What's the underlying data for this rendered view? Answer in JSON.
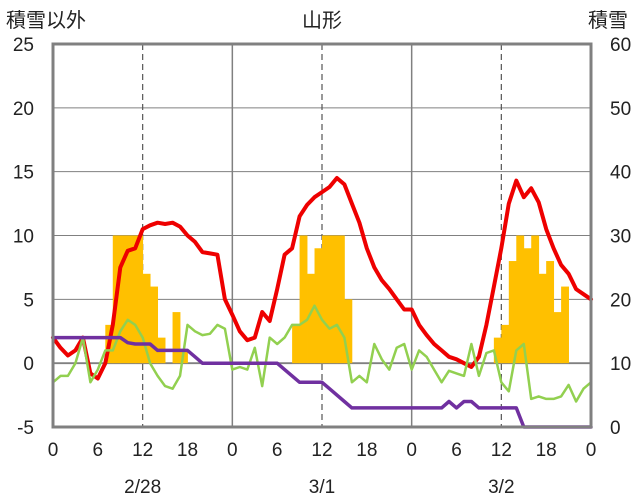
{
  "chart_data": {
    "type": "bar+line",
    "title": "山形",
    "left_axis_label": "積雪以外",
    "right_axis_label": "積雪",
    "left_ylim": [
      -5,
      25
    ],
    "left_yticks": [
      -5,
      0,
      5,
      10,
      15,
      20,
      25
    ],
    "right_ylim": [
      0,
      60
    ],
    "right_yticks": [
      0,
      10,
      20,
      30,
      40,
      50,
      60
    ],
    "xlim": [
      0,
      72
    ],
    "x_ticks": [
      0,
      6,
      12,
      18,
      24,
      30,
      36,
      42,
      48,
      54,
      60,
      66,
      72
    ],
    "x_tick_labels": [
      "0",
      "6",
      "12",
      "18",
      "0",
      "6",
      "12",
      "18",
      "0",
      "6",
      "12",
      "18",
      "0"
    ],
    "day_labels": [
      {
        "x": 12,
        "label": "2/28"
      },
      {
        "x": 36,
        "label": "3/1"
      },
      {
        "x": 60,
        "label": "3/2"
      }
    ],
    "grid": {
      "vertical_solid": [
        24,
        48
      ],
      "vertical_dashed": [
        12,
        36,
        60
      ]
    },
    "colors": {
      "bars": "#FFC000",
      "red": "#EE0000",
      "green": "#92D050",
      "purple": "#7030A0",
      "frame": "#808080"
    },
    "bars": {
      "axis": "left",
      "values": [
        0,
        0,
        0,
        0,
        0,
        0,
        0,
        3,
        10,
        10,
        10,
        10,
        7,
        6,
        2,
        0,
        4,
        1,
        0,
        0,
        0,
        0,
        0,
        0,
        0,
        0,
        0,
        0,
        0,
        0,
        0,
        0,
        3,
        10,
        7,
        9,
        10,
        10,
        10,
        5,
        0,
        0,
        0,
        0,
        0,
        0,
        0,
        0,
        0,
        0,
        0,
        0,
        0,
        0,
        0,
        0,
        0,
        0,
        0,
        2,
        3,
        8,
        10,
        9,
        10,
        7,
        8,
        4,
        6,
        0,
        0,
        0
      ]
    },
    "series": [
      {
        "axis": "left",
        "color": "#EE0000",
        "x": [
          0,
          1,
          2,
          3,
          4,
          5,
          6,
          7,
          8,
          9,
          10,
          11,
          12,
          13,
          14,
          15,
          16,
          17,
          18,
          19,
          20,
          21,
          22,
          23,
          24,
          25,
          26,
          27,
          28,
          29,
          30,
          31,
          32,
          33,
          34,
          35,
          36,
          37,
          38,
          39,
          40,
          41,
          42,
          43,
          44,
          45,
          46,
          47,
          48,
          49,
          50,
          51,
          52,
          53,
          54,
          55,
          56,
          57,
          58,
          59,
          60,
          61,
          62,
          63,
          64,
          65,
          66,
          67,
          68,
          69,
          70,
          71,
          72
        ],
        "values": [
          2,
          1.2,
          0.6,
          1,
          2,
          -0.8,
          -1.2,
          0,
          3,
          7.5,
          8.8,
          9,
          10.5,
          10.8,
          11,
          10.9,
          11,
          10.7,
          10,
          9.5,
          8.7,
          8.6,
          8.5,
          5,
          3.8,
          2.5,
          1.8,
          2,
          4,
          3.3,
          5.8,
          8.5,
          9,
          11.5,
          12.4,
          13,
          13.4,
          13.8,
          14.5,
          14,
          12.5,
          11,
          9,
          7.5,
          6.5,
          5.8,
          5,
          4.2,
          4.2,
          3,
          2.2,
          1.5,
          1,
          0.5,
          0.3,
          0,
          -0.3,
          0.5,
          3,
          6,
          9,
          12.5,
          14.3,
          13,
          13.7,
          12.6,
          10.5,
          9,
          7.7,
          7,
          5.8,
          5.4,
          5
        ]
      },
      {
        "axis": "left",
        "color": "#92D050",
        "x": [
          0,
          1,
          2,
          3,
          4,
          5,
          6,
          7,
          8,
          9,
          10,
          11,
          12,
          13,
          14,
          15,
          16,
          17,
          18,
          19,
          20,
          21,
          22,
          23,
          24,
          25,
          26,
          27,
          28,
          29,
          30,
          31,
          32,
          33,
          34,
          35,
          36,
          37,
          38,
          39,
          40,
          41,
          42,
          43,
          44,
          45,
          46,
          47,
          48,
          49,
          50,
          51,
          52,
          53,
          54,
          55,
          56,
          57,
          58,
          59,
          60,
          61,
          62,
          63,
          64,
          65,
          66,
          67,
          68,
          69,
          70,
          71,
          72
        ],
        "values": [
          -1.5,
          -1,
          -1,
          0,
          2,
          -1.5,
          -0.5,
          1,
          1,
          2.5,
          3.4,
          3,
          2,
          0,
          -1,
          -1.8,
          -2,
          -1,
          3,
          2.5,
          2.2,
          2.3,
          3,
          2.7,
          -0.5,
          -0.3,
          -0.5,
          1.2,
          -1.8,
          2,
          1.5,
          2,
          3,
          3,
          3.4,
          4.5,
          3.4,
          2.7,
          3,
          2,
          -1.5,
          -1,
          -1.5,
          1.5,
          0.3,
          -0.5,
          1.2,
          1.5,
          -0.5,
          1,
          0.5,
          -0.5,
          -1.5,
          -0.6,
          -0.8,
          -1,
          1.5,
          -1,
          0.8,
          1,
          -1.5,
          -2.2,
          1,
          1.5,
          -2.8,
          -2.6,
          -2.8,
          -2.8,
          -2.6,
          -1.7,
          -3,
          -2,
          -1.5
        ]
      },
      {
        "axis": "left",
        "color": "#7030A0",
        "x": [
          0,
          5,
          6,
          9,
          10,
          11,
          13,
          14,
          15,
          18,
          19,
          20,
          21,
          30,
          31,
          33,
          34,
          36,
          37,
          39,
          40,
          41,
          42,
          43,
          44,
          45,
          46,
          47,
          48,
          49,
          50,
          51,
          52,
          53,
          54,
          55,
          56,
          57,
          58,
          59,
          60,
          61,
          62,
          63,
          72
        ],
        "values": [
          2,
          2,
          2,
          2,
          1.6,
          1.5,
          1.5,
          1,
          1,
          1,
          0.5,
          0,
          0,
          0,
          -0.5,
          -1.5,
          -1.5,
          -1.5,
          -2,
          -3,
          -3.5,
          -3.5,
          -3.5,
          -3.5,
          -3.5,
          -3.5,
          -3.5,
          -3.5,
          -3.5,
          -3.5,
          -3.5,
          -3.5,
          -3.5,
          -3,
          -3.5,
          -3,
          -3,
          -3.5,
          -3.5,
          -3.5,
          -3.5,
          -3.5,
          -3.5,
          -5,
          -5
        ]
      }
    ]
  }
}
